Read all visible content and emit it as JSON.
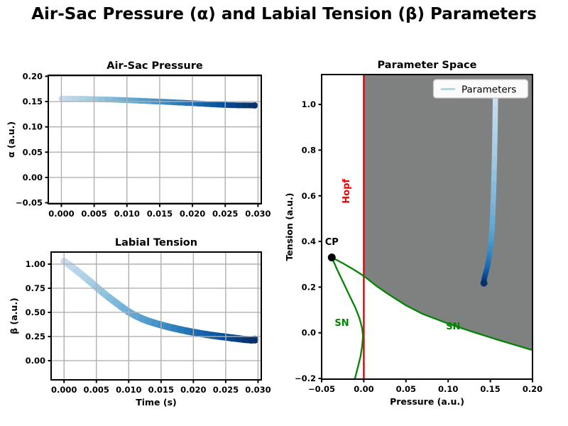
{
  "figure": {
    "title": "Air-Sac Pressure (α) and Labial Tension (β) Parameters",
    "background": "#ffffff"
  },
  "colors": {
    "trajectory_ramp": [
      "#c9dcee",
      "#9ecae1",
      "#6baed6",
      "#4292c6",
      "#2171b5",
      "#08519c",
      "#08306b"
    ],
    "grid": "#b0b0b0",
    "axis": "#000000",
    "hopf": "#f40000",
    "sn": "#048404",
    "region": "#7f8181",
    "cp": "#000000",
    "legend_sample": "#a8cee2",
    "end_dot": "#08306b",
    "legend_bg": "#fbfbfb",
    "legend_border": "#c8c8c8"
  },
  "series": {
    "time_s": [
      0.0,
      0.001,
      0.002,
      0.003,
      0.004,
      0.005,
      0.006,
      0.007,
      0.008,
      0.009,
      0.01,
      0.011,
      0.012,
      0.013,
      0.014,
      0.015,
      0.016,
      0.017,
      0.018,
      0.019,
      0.02,
      0.021,
      0.022,
      0.023,
      0.024,
      0.025,
      0.026,
      0.027,
      0.028,
      0.029,
      0.0295
    ],
    "alpha": [
      0.156,
      0.1559,
      0.1557,
      0.1555,
      0.1552,
      0.1549,
      0.1545,
      0.1541,
      0.1537,
      0.1532,
      0.1527,
      0.1522,
      0.1517,
      0.1511,
      0.1505,
      0.1499,
      0.1493,
      0.1487,
      0.148,
      0.1474,
      0.1467,
      0.146,
      0.1453,
      0.1446,
      0.1439,
      0.1432,
      0.1428,
      0.1426,
      0.1425,
      0.1424,
      0.1424
    ],
    "beta": [
      1.03,
      0.982,
      0.93,
      0.876,
      0.82,
      0.762,
      0.705,
      0.652,
      0.602,
      0.552,
      0.505,
      0.468,
      0.436,
      0.41,
      0.389,
      0.37,
      0.352,
      0.336,
      0.321,
      0.307,
      0.294,
      0.282,
      0.271,
      0.261,
      0.252,
      0.244,
      0.235,
      0.227,
      0.219,
      0.214,
      0.218
    ]
  },
  "chart_data": [
    {
      "id": "air_sac_pressure",
      "type": "line",
      "title": "Air-Sac Pressure",
      "xlabel": "",
      "ylabel": "α (a.u.)",
      "x_key": "time_s",
      "y_key": "alpha",
      "xlim": [
        -0.002,
        0.0305
      ],
      "ylim": [
        -0.052,
        0.202
      ],
      "xticks": {
        "values": [
          0.0,
          0.005,
          0.01,
          0.015,
          0.02,
          0.025,
          0.03
        ],
        "labels": [
          "0.000",
          "0.005",
          "0.010",
          "0.015",
          "0.020",
          "0.025",
          "0.030"
        ]
      },
      "yticks": {
        "values": [
          -0.05,
          0.0,
          0.05,
          0.1,
          0.15,
          0.2
        ],
        "labels": [
          "−0.05",
          "0.00",
          "0.05",
          "0.10",
          "0.15",
          "0.20"
        ]
      },
      "grid": true,
      "line_width": 8,
      "end_dot_r": 4.5,
      "legend_position": "none"
    },
    {
      "id": "labial_tension",
      "type": "line",
      "title": "Labial Tension",
      "xlabel": "Time (s)",
      "ylabel": "β (a.u.)",
      "x_key": "time_s",
      "y_key": "beta",
      "xlim": [
        -0.002,
        0.0305
      ],
      "ylim": [
        -0.199,
        1.125
      ],
      "xticks": {
        "values": [
          0.0,
          0.005,
          0.01,
          0.015,
          0.02,
          0.025,
          0.03
        ],
        "labels": [
          "0.000",
          "0.005",
          "0.010",
          "0.015",
          "0.020",
          "0.025",
          "0.030"
        ]
      },
      "yticks": {
        "values": [
          0.0,
          0.25,
          0.5,
          0.75,
          1.0
        ],
        "labels": [
          "0.00",
          "0.25",
          "0.50",
          "0.75",
          "1.00"
        ]
      },
      "grid": true,
      "line_width": 10,
      "end_dot_r": 5.5,
      "legend_position": "none"
    },
    {
      "id": "parameter_space",
      "type": "line",
      "title": "Parameter Space",
      "xlabel": "Pressure (a.u.)",
      "ylabel": "Tension (a.u.)",
      "x_key": "alpha",
      "y_key": "beta",
      "xlim": [
        -0.05,
        0.2
      ],
      "ylim": [
        -0.203,
        1.131
      ],
      "xticks": {
        "values": [
          -0.05,
          0.0,
          0.05,
          0.1,
          0.15,
          0.2
        ],
        "labels": [
          "−0.05",
          "0.00",
          "0.05",
          "0.10",
          "0.15",
          "0.20"
        ]
      },
      "yticks": {
        "values": [
          -0.2,
          0.0,
          0.2,
          0.4,
          0.6,
          0.8,
          1.0
        ],
        "labels": [
          "−0.2",
          "0.0",
          "0.2",
          "0.4",
          "0.6",
          "0.8",
          "1.0"
        ]
      },
      "grid": false,
      "line_width": 7.5,
      "end_dot_r": 5,
      "legend_position": "upper-right",
      "legend": {
        "label": "Parameters"
      },
      "hopf_line_x": 0.0,
      "cp_point": {
        "x": -0.038,
        "y": 0.33
      },
      "sn_left_branch": [
        [
          -0.038,
          0.33
        ],
        [
          -0.031,
          0.272
        ],
        [
          -0.024,
          0.218
        ],
        [
          -0.017,
          0.163
        ],
        [
          -0.01,
          0.11
        ],
        [
          -0.005,
          0.062
        ],
        [
          -0.002,
          0.02
        ],
        [
          -0.001,
          -0.015
        ],
        [
          -0.002,
          -0.06
        ],
        [
          -0.004,
          -0.105
        ],
        [
          -0.007,
          -0.15
        ],
        [
          -0.0105,
          -0.2
        ]
      ],
      "sn_right_branch": [
        [
          -0.038,
          0.33
        ],
        [
          -0.025,
          0.305
        ],
        [
          -0.012,
          0.277
        ],
        [
          0.0,
          0.249
        ],
        [
          0.015,
          0.205
        ],
        [
          0.03,
          0.167
        ],
        [
          0.05,
          0.12
        ],
        [
          0.07,
          0.082
        ],
        [
          0.1,
          0.04
        ],
        [
          0.13,
          0.003
        ],
        [
          0.16,
          -0.032
        ],
        [
          0.2,
          -0.076
        ]
      ],
      "region": {
        "left_boundary_x": 0.0,
        "note": "shaded region right of Hopf line, above right SN branch"
      },
      "annotations": [
        {
          "text": "CP",
          "x": -0.038,
          "y": 0.385,
          "color": "#000000",
          "rotate": 0,
          "size": 13,
          "weight": "bold"
        },
        {
          "text": "Hopf",
          "x": -0.017,
          "y": 0.62,
          "color": "#f40000",
          "rotate": -90,
          "size": 13,
          "weight": "bold"
        },
        {
          "text": "SN",
          "x": -0.026,
          "y": 0.03,
          "color": "#048404",
          "rotate": 0,
          "size": 13,
          "weight": "bold"
        },
        {
          "text": "SN",
          "x": 0.106,
          "y": 0.015,
          "color": "#048404",
          "rotate": 0,
          "size": 13,
          "weight": "bold"
        }
      ]
    }
  ]
}
